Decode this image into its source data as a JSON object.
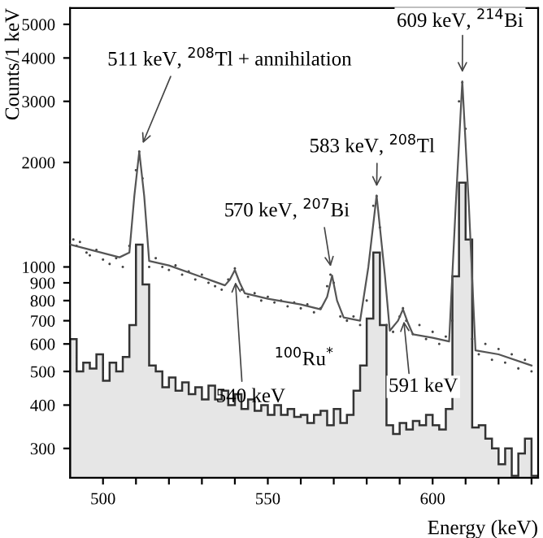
{
  "chart_data": {
    "type": "line",
    "xlabel": "Energy (keV)",
    "ylabel": "Counts/1 keV",
    "xlim": [
      490,
      632
    ],
    "ylim": [
      247,
      5570
    ],
    "log": "y",
    "grid": false,
    "xticks": [
      500,
      {
        "value": 510,
        "label": null
      },
      {
        "value": 520,
        "label": null
      },
      {
        "value": 530,
        "label": null
      },
      {
        "value": 540,
        "label": null
      },
      550,
      {
        "value": 560,
        "label": null
      },
      {
        "value": 570,
        "label": null
      },
      {
        "value": 580,
        "label": null
      },
      {
        "value": 590,
        "label": null
      },
      600,
      {
        "value": 610,
        "label": null
      },
      {
        "value": 620,
        "label": null
      },
      {
        "value": 630,
        "label": null
      }
    ],
    "yticks": [
      300,
      400,
      500,
      600,
      700,
      800,
      900,
      1000,
      2000,
      3000,
      4000,
      5000
    ],
    "series": [
      {
        "type": "histogram",
        "color": "#e6e6e6",
        "bins": [
          490,
          492,
          494,
          496,
          498,
          500,
          502,
          504,
          506,
          508,
          510,
          512,
          514,
          516,
          518,
          520,
          522,
          524,
          526,
          528,
          530,
          532,
          534,
          536,
          538,
          540,
          542,
          544,
          546,
          548,
          550,
          552,
          554,
          556,
          558,
          560,
          562,
          564,
          566,
          568,
          570,
          572,
          574,
          576,
          578,
          580,
          582,
          584,
          586,
          588,
          590,
          592,
          594,
          596,
          598,
          600,
          602,
          604,
          606,
          608,
          610,
          612,
          614,
          616,
          618,
          620,
          622,
          624,
          626,
          628,
          630,
          632
        ],
        "values": [
          620,
          500,
          530,
          510,
          560,
          470,
          530,
          500,
          550,
          680,
          1160,
          890,
          520,
          500,
          450,
          480,
          440,
          465,
          430,
          450,
          415,
          455,
          415,
          440,
          400,
          430,
          390,
          415,
          385,
          400,
          375,
          400,
          375,
          390,
          370,
          375,
          355,
          375,
          385,
          350,
          390,
          355,
          375,
          440,
          520,
          710,
          1100,
          680,
          350,
          330,
          355,
          340,
          360,
          350,
          375,
          350,
          340,
          390,
          940,
          1750,
          1200,
          345,
          350,
          320,
          300,
          270,
          300,
          250,
          290,
          320,
          250
        ]
      },
      {
        "type": "scatter",
        "color": "#444444",
        "marker": "circle",
        "x": [
          491,
          492,
          493,
          495,
          496,
          498,
          500,
          502,
          504,
          506,
          508,
          510,
          511,
          512,
          514,
          516,
          518,
          520,
          522,
          524,
          526,
          528,
          530,
          532,
          534,
          536,
          538,
          540,
          542,
          544,
          546,
          548,
          550,
          552,
          554,
          556,
          558,
          560,
          562,
          564,
          566,
          568,
          569,
          570,
          572,
          574,
          576,
          578,
          580,
          582,
          583,
          584,
          586,
          588,
          590,
          591,
          592,
          594,
          596,
          598,
          600,
          602,
          604,
          606,
          608,
          609,
          610,
          612,
          614,
          616,
          618,
          620,
          622,
          624,
          626,
          628,
          630
        ],
        "values": [
          1200,
          1150,
          1180,
          1100,
          1080,
          1120,
          1050,
          1020,
          1060,
          1000,
          1150,
          1900,
          2150,
          1800,
          1000,
          1060,
          1000,
          980,
          1010,
          950,
          970,
          920,
          950,
          900,
          880,
          860,
          920,
          990,
          860,
          820,
          840,
          800,
          820,
          790,
          800,
          770,
          790,
          760,
          780,
          740,
          760,
          880,
          950,
          900,
          720,
          700,
          720,
          680,
          800,
          1500,
          1600,
          1300,
          680,
          650,
          720,
          760,
          700,
          640,
          680,
          620,
          650,
          600,
          630,
          700,
          3000,
          3400,
          2500,
          620,
          560,
          600,
          540,
          580,
          530,
          560,
          510,
          540,
          500
        ]
      },
      {
        "type": "line",
        "color": "#555555",
        "line_style": "solid",
        "x": [
          490,
          505,
          508,
          509.5,
          511,
          512.5,
          514,
          520,
          530,
          537,
          538.5,
          540,
          541.5,
          543,
          550,
          560,
          566,
          568,
          569.5,
          571,
          573,
          578,
          580.5,
          583,
          585.5,
          587,
          589.5,
          591,
          592.5,
          594,
          600,
          605,
          607,
          609,
          611,
          613,
          620,
          630
        ],
        "values": [
          1160,
          1066,
          1100,
          1600,
          2150,
          1600,
          1040,
          1010,
          935,
          885,
          920,
          980,
          900,
          840,
          810,
          780,
          755,
          820,
          945,
          800,
          715,
          700,
          1000,
          1607,
          950,
          655,
          700,
          755,
          690,
          640,
          625,
          610,
          1500,
          3427,
          1500,
          575,
          560,
          520
        ]
      }
    ],
    "annotations": [
      {
        "text": "511 keV, $^{208}$Tl + annihilation",
        "x": 511,
        "y": 2150
      },
      {
        "text": "570 keV, $^{207}$Bi",
        "x": 569.5,
        "y": 945
      },
      {
        "text": "583 keV, $^{208}$Tl",
        "x": 583,
        "y": 1607
      },
      {
        "text": "609 keV, $^{214}$Bi",
        "x": 609,
        "y": 3427
      },
      {
        "text": "540 keV",
        "x": 540,
        "y": 960
      },
      "$^{100}$Ru$^{*}$",
      {
        "text": "591 keV",
        "x": 591,
        "y": 740
      }
    ]
  }
}
